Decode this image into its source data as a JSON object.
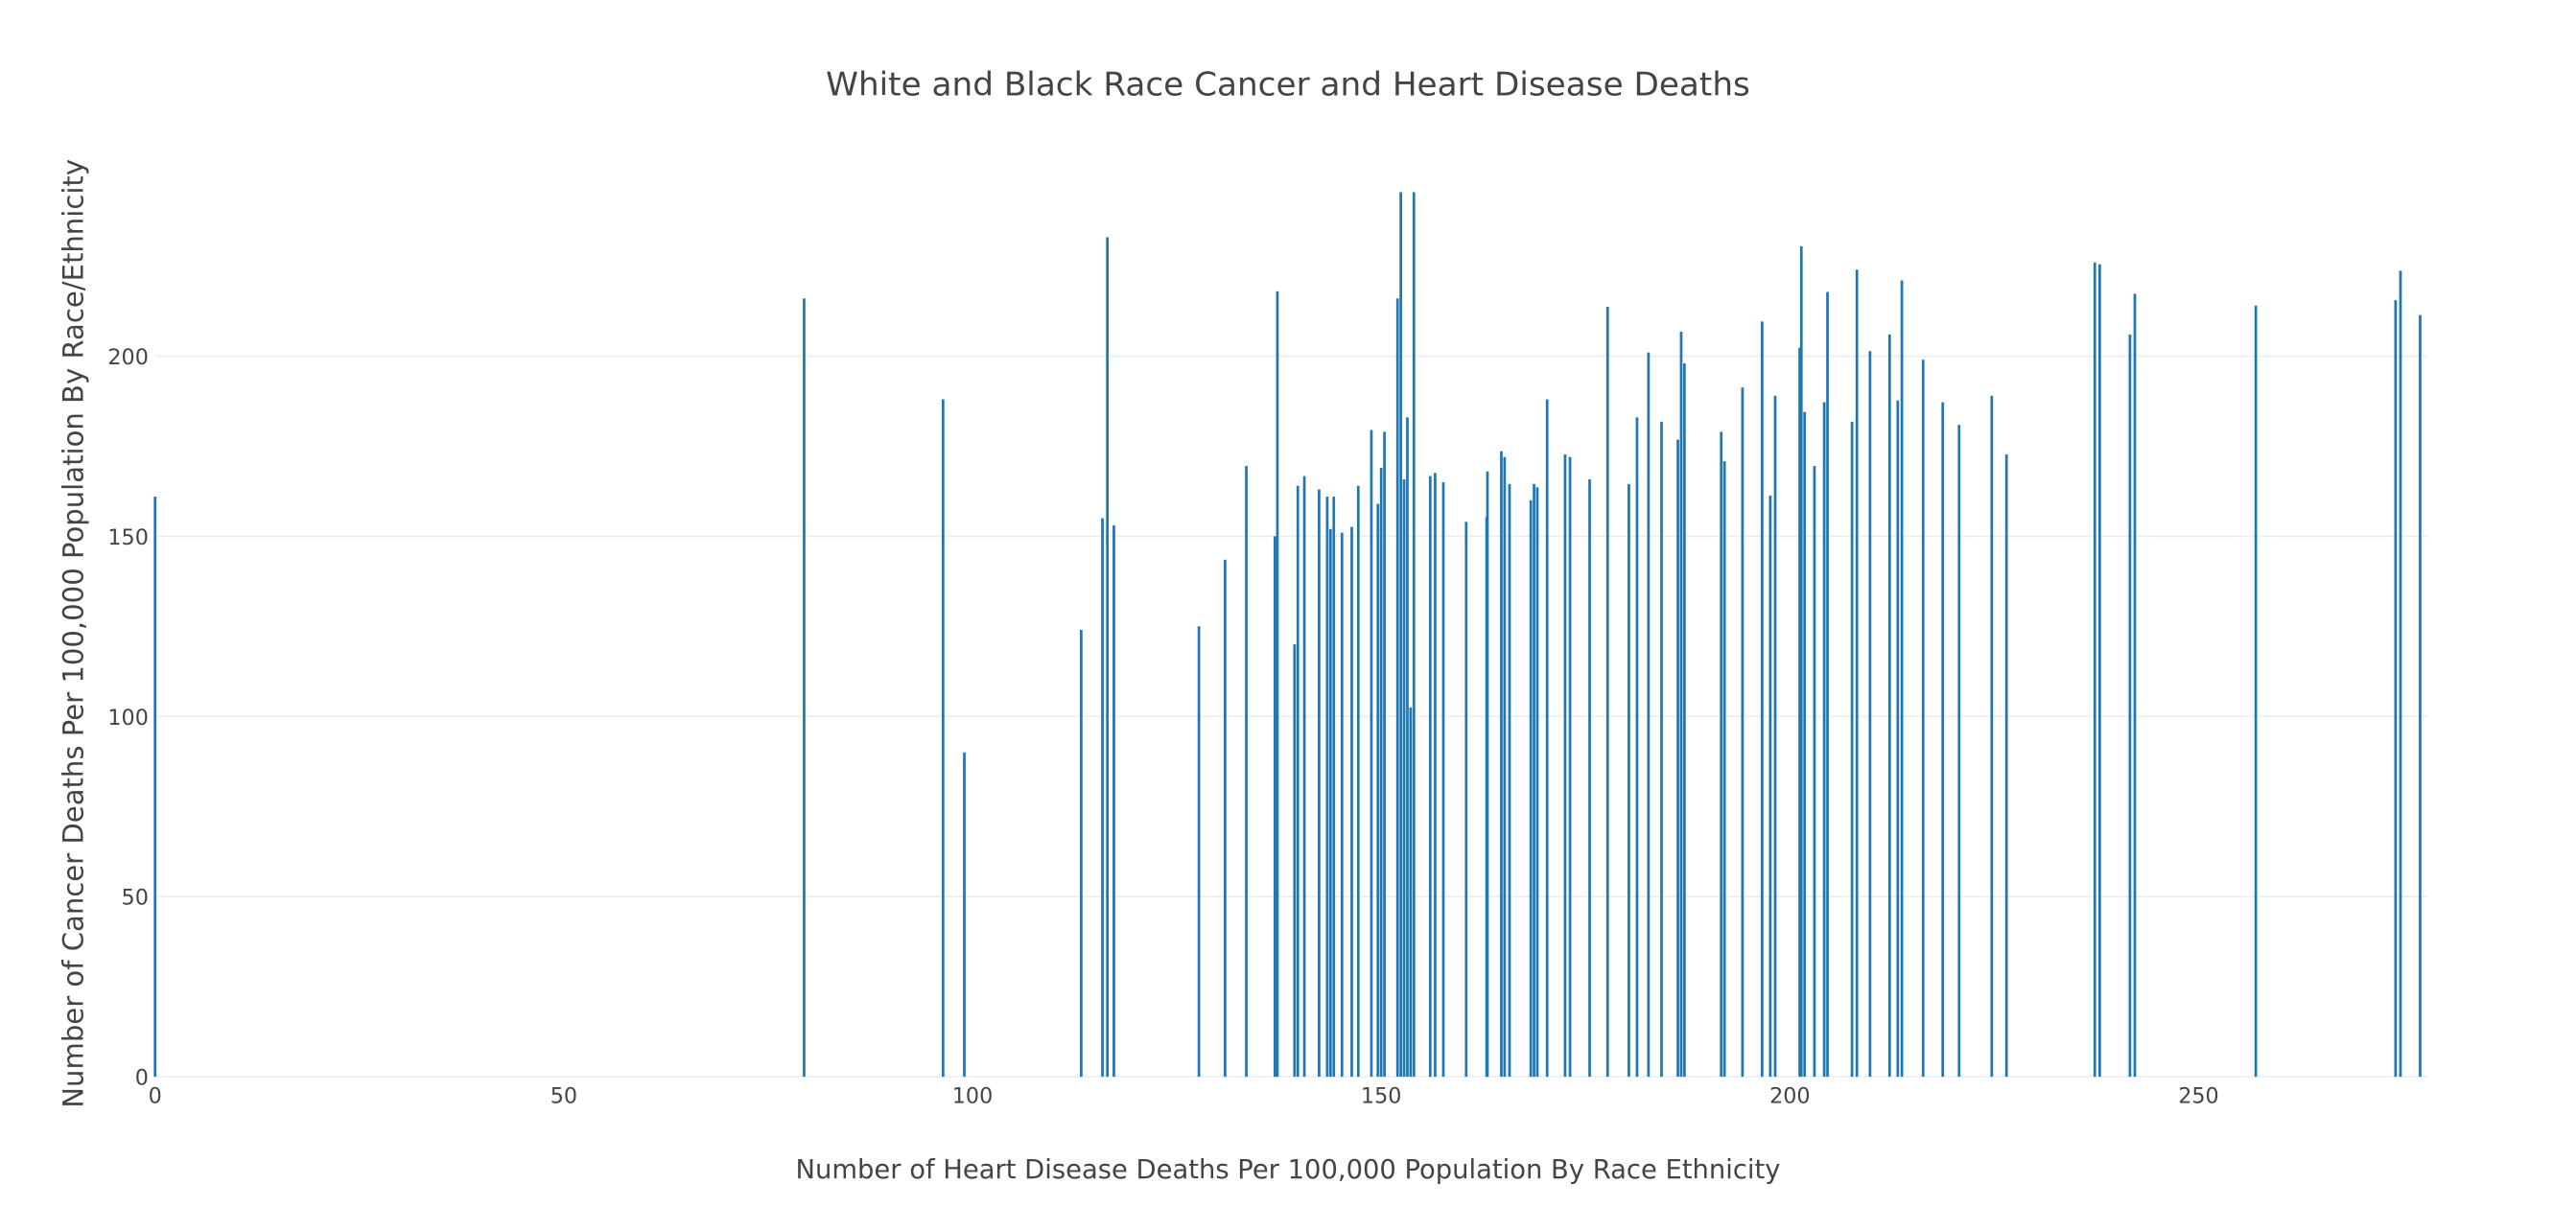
{
  "chart_data": {
    "type": "bar",
    "title": "White and Black Race Cancer and Heart Disease Deaths",
    "x_label": "Number of Heart Disease Deaths Per 100,000 Population By Race Ethnicity",
    "y_label": "Number of Cancer Deaths Per 100,000 Population By Race/Ethnicity",
    "color": "#1f77b4",
    "x": [
      0,
      79.4,
      96.4,
      99,
      113.3,
      115.9,
      116.5,
      117.3,
      127.7,
      130.9,
      133.5,
      137,
      137.3,
      139.4,
      139.8,
      140.6,
      142.4,
      143.4,
      143.8,
      144.2,
      145.2,
      146.4,
      147.2,
      148.8,
      149.6,
      150,
      150.4,
      152,
      152.4,
      152.8,
      153.2,
      153.6,
      154,
      156,
      156.6,
      157.6,
      160.4,
      162.9,
      163,
      164.7,
      165.1,
      165.7,
      168.3,
      168.7,
      169.1,
      170.3,
      172.5,
      173.1,
      175.5,
      177.7,
      180.3,
      181.3,
      182.7,
      184.3,
      186.3,
      186.7,
      187.1,
      191.6,
      192,
      194.2,
      196.6,
      197.6,
      198.2,
      201.2,
      201.4,
      201.8,
      203,
      204.2,
      204.6,
      207.6,
      208.2,
      209.8,
      212.2,
      213.2,
      213.7,
      216.3,
      218.7,
      220.7,
      224.7,
      226.5,
      237.3,
      237.9,
      241.6,
      242.2,
      257,
      274.1,
      274.7,
      277.1
    ],
    "values": [
      161,
      216,
      188,
      90,
      124,
      155,
      233,
      153,
      125,
      143.5,
      169.5,
      150,
      218,
      120,
      164,
      166.7,
      163,
      161,
      152,
      161,
      151,
      152.6,
      164,
      179.5,
      159,
      169,
      179,
      216,
      245.5,
      165.8,
      183,
      102.5,
      245.5,
      166.7,
      167.6,
      165,
      154,
      155.3,
      168,
      173.6,
      172,
      164.5,
      160,
      164.5,
      163.6,
      188,
      172.7,
      172,
      165.8,
      213.7,
      164.5,
      183,
      201,
      181.8,
      176.8,
      206.8,
      198,
      179,
      170.8,
      191.3,
      209.6,
      161.3,
      189,
      202.3,
      230.5,
      184.5,
      169.5,
      187.2,
      217.8,
      181.8,
      224,
      201.4,
      206,
      187.7,
      221,
      199,
      187.2,
      180.9,
      189,
      172.7,
      226,
      225.5,
      206,
      217.3,
      214,
      215.5,
      223.7,
      211.4
    ],
    "xlim": [
      0,
      278
    ],
    "xticks": [
      0,
      50,
      100,
      150,
      200,
      250
    ],
    "ylim": [
      0,
      246
    ],
    "yticks": [
      0,
      50,
      100,
      150,
      200
    ],
    "grid": true
  }
}
